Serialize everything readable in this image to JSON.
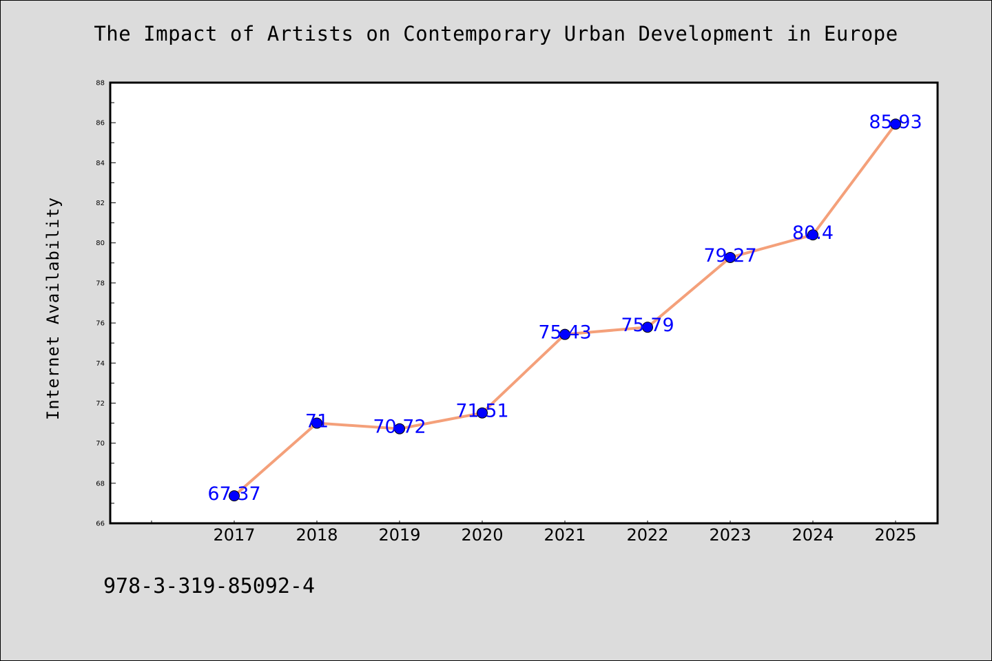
{
  "chart_data": {
    "type": "line",
    "title": "The Impact of Artists on Contemporary Urban Development in Europe",
    "xlabel": "",
    "ylabel": "Internet Availability",
    "categories": [
      "2017",
      "2018",
      "2019",
      "2020",
      "2021",
      "2022",
      "2023",
      "2024",
      "2025"
    ],
    "series": [
      {
        "values": [
          67.37,
          71,
          70.72,
          71.51,
          75.43,
          75.79,
          79.27,
          80.4,
          85.93
        ]
      }
    ],
    "data_labels": [
      "67.37",
      "71",
      "70.72",
      "71.51",
      "75.43",
      "75.79",
      "79.27",
      "80.4",
      "85.93"
    ],
    "ylim": [
      66,
      88
    ],
    "y_ticks": [
      66,
      68,
      70,
      72,
      74,
      76,
      78,
      80,
      82,
      84,
      86,
      88
    ],
    "grid": false,
    "colors": {
      "line": "#f4a07a",
      "marker": "#0000ff",
      "label": "#0000ff",
      "background": "#dcdcdc",
      "plot_background": "#ffffff"
    }
  },
  "footer": {
    "isbn": "978-3-319-85092-4"
  }
}
